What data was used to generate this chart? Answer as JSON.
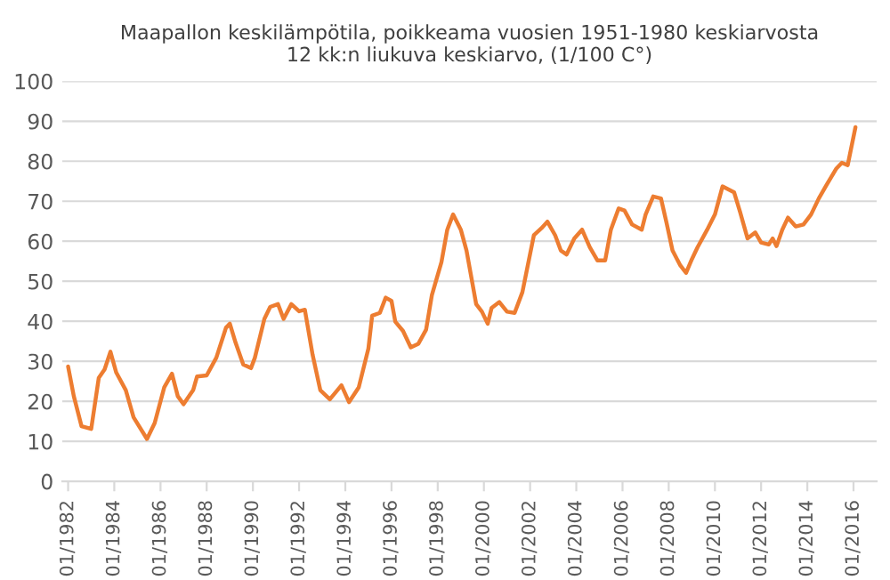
{
  "chart_data": {
    "type": "line",
    "title": "Maapallon keskilämpötila, poikkeama vuosien 1951-1980 keskiarvosta\n12 kk:n liukuva keskiarvo, (1/100 C°)",
    "series": [
      {
        "color": "#ed7d31",
        "x": [
          "1982-01",
          "1982-04",
          "1982-08",
          "1983-01",
          "1983-05",
          "1983-08",
          "1983-11",
          "1984-02",
          "1984-07",
          "1984-11",
          "1985-06",
          "1985-10",
          "1986-03",
          "1986-07",
          "1986-10",
          "1987-01",
          "1987-06",
          "1987-08",
          "1988-01",
          "1988-06",
          "1988-11",
          "1989-01",
          "1989-04",
          "1989-08",
          "1989-12",
          "1990-02",
          "1990-07",
          "1990-10",
          "1991-02",
          "1991-05",
          "1991-09",
          "1992-01",
          "1992-04",
          "1992-08",
          "1992-12",
          "1993-05",
          "1993-11",
          "1994-03",
          "1994-08",
          "1995-01",
          "1995-03",
          "1995-07",
          "1995-10",
          "1996-01",
          "1996-03",
          "1996-07",
          "1996-11",
          "1997-03",
          "1997-07",
          "1997-10",
          "1998-03",
          "1998-06",
          "1998-09",
          "1999-01",
          "1999-04",
          "1999-09",
          "1999-12",
          "2000-03",
          "2000-05",
          "2000-09",
          "2001-01",
          "2001-05",
          "2001-09",
          "2002-03",
          "2002-07",
          "2002-10",
          "2003-02",
          "2003-05",
          "2003-08",
          "2003-12",
          "2004-04",
          "2004-08",
          "2004-12",
          "2005-04",
          "2005-07",
          "2005-11",
          "2006-02",
          "2006-06",
          "2006-11",
          "2007-01",
          "2007-05",
          "2007-09",
          "2007-12",
          "2008-03",
          "2008-07",
          "2008-10",
          "2009-01",
          "2009-04",
          "2009-09",
          "2010-01",
          "2010-05",
          "2010-11",
          "2011-02",
          "2011-06",
          "2011-10",
          "2012-01",
          "2012-05",
          "2012-07",
          "2012-09",
          "2012-12",
          "2013-03",
          "2013-07",
          "2013-11",
          "2014-03",
          "2014-07",
          "2014-11",
          "2015-04",
          "2015-07",
          "2015-10",
          "2016-02"
        ],
        "values": [
          28.7,
          21.3,
          13.8,
          13.1,
          25.9,
          28,
          32.4,
          27.2,
          22.8,
          16,
          10.6,
          14.6,
          23.5,
          26.9,
          21.3,
          19.3,
          22.8,
          26.2,
          26.5,
          30.9,
          38.4,
          39.4,
          34.7,
          29.2,
          28.3,
          30.9,
          40.6,
          43.6,
          44.3,
          40.6,
          44.3,
          42.5,
          42.9,
          31.7,
          22.8,
          20.5,
          24,
          19.8,
          23.5,
          33.2,
          41.4,
          42.1,
          45.9,
          45.1,
          39.9,
          37.6,
          33.5,
          34.4,
          37.9,
          46.6,
          54.8,
          62.9,
          66.7,
          62.9,
          57.7,
          44.3,
          42.4,
          39.4,
          43.3,
          44.8,
          42.4,
          42.1,
          47.3,
          61.5,
          63.3,
          64.9,
          61.5,
          57.7,
          56.7,
          60.7,
          62.9,
          58.5,
          55.2,
          55.2,
          62.9,
          68.2,
          67.7,
          64.2,
          62.9,
          66.7,
          71.2,
          70.7,
          64.4,
          57.7,
          54,
          52.1,
          55.5,
          58.5,
          62.9,
          66.7,
          73.7,
          72.2,
          67.4,
          60.7,
          62.2,
          59.7,
          59.2,
          60.7,
          58.8,
          62.9,
          65.9,
          63.7,
          64.2,
          66.7,
          70.7,
          74.1,
          78.1,
          79.6,
          79,
          88.5
        ]
      }
    ],
    "xlim": [
      "1981-10",
      "2017-01"
    ],
    "xticks": [
      {
        "value": "1982-01",
        "label": "01/1982"
      },
      {
        "value": "1984-01",
        "label": "01/1984"
      },
      {
        "value": "1986-01",
        "label": "01/1986"
      },
      {
        "value": "1988-01",
        "label": "01/1988"
      },
      {
        "value": "1990-01",
        "label": "01/1990"
      },
      {
        "value": "1992-01",
        "label": "01/1992"
      },
      {
        "value": "1994-01",
        "label": "01/1994"
      },
      {
        "value": "1996-01",
        "label": "01/1996"
      },
      {
        "value": "1998-01",
        "label": "01/1998"
      },
      {
        "value": "2000-01",
        "label": "01/2000"
      },
      {
        "value": "2002-01",
        "label": "01/2002"
      },
      {
        "value": "2004-01",
        "label": "01/2004"
      },
      {
        "value": "2006-01",
        "label": "01/2006"
      },
      {
        "value": "2008-01",
        "label": "01/2008"
      },
      {
        "value": "2010-01",
        "label": "01/2010"
      },
      {
        "value": "2012-01",
        "label": "01/2012"
      },
      {
        "value": "2014-01",
        "label": "01/2014"
      },
      {
        "value": "2016-01",
        "label": "01/2016"
      }
    ],
    "ylim": [
      0,
      100
    ],
    "yticks": [
      0,
      10,
      20,
      30,
      40,
      50,
      60,
      70,
      80,
      90,
      100
    ],
    "grid": "y"
  }
}
